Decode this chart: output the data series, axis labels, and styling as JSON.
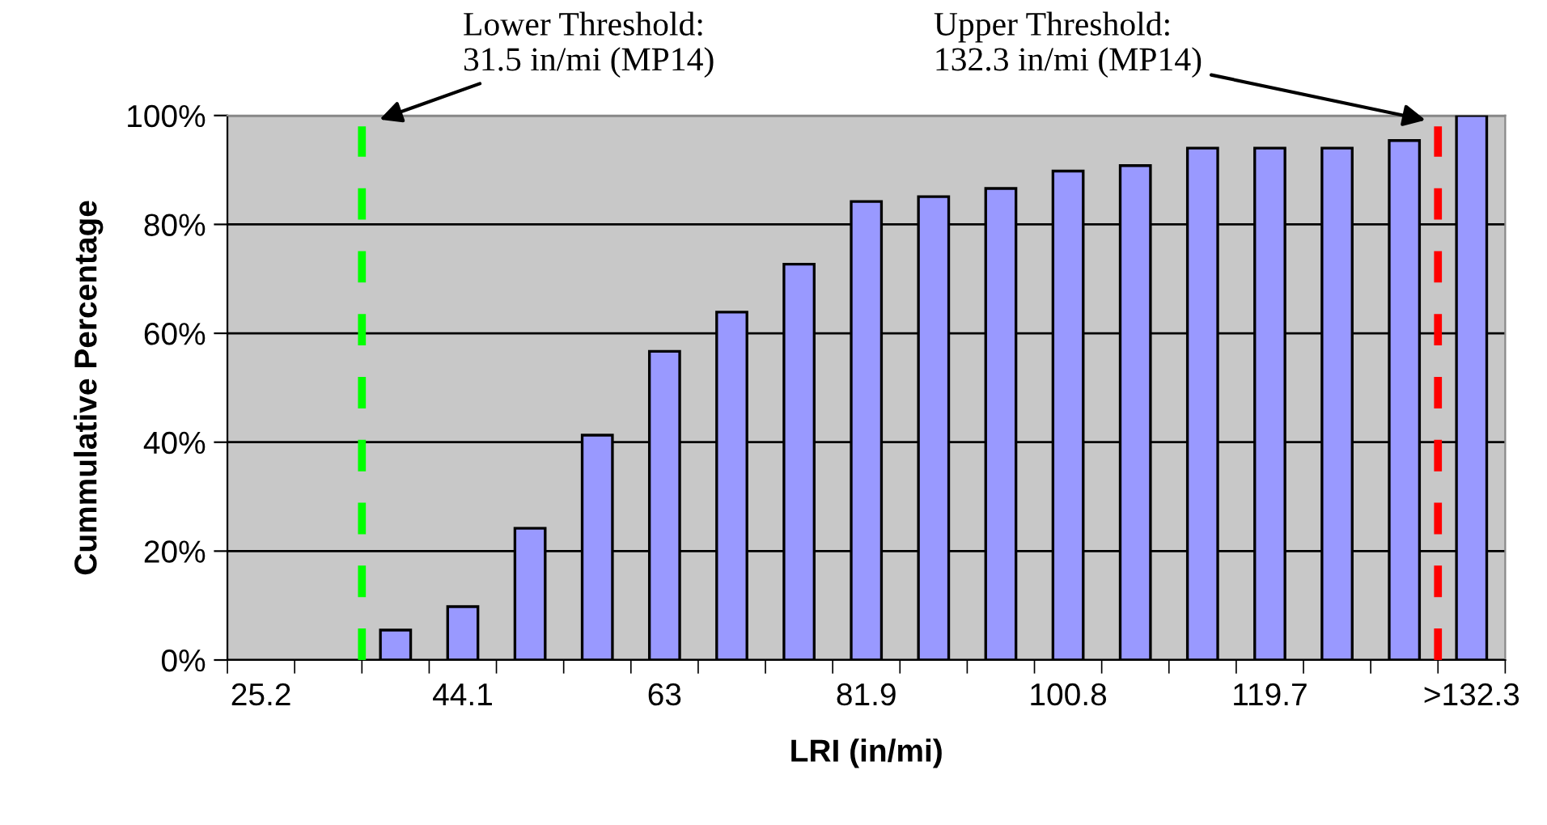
{
  "chart_data": {
    "type": "bar",
    "xlabel": "LRI (in/mi)",
    "ylabel": "Cummulative Percentage",
    "categories": [
      "25.2",
      null,
      null,
      "44.1",
      null,
      null,
      "63",
      null,
      null,
      "81.9",
      null,
      null,
      "100.8",
      null,
      null,
      "119.7",
      null,
      null,
      ">132.3"
    ],
    "values": [
      null,
      null,
      5.5,
      9.8,
      24.2,
      41.3,
      56.7,
      63.9,
      72.7,
      84.2,
      85.1,
      86.6,
      89.8,
      90.8,
      94.0,
      94.0,
      94.0,
      95.4,
      100
    ],
    "color": "#9999ff",
    "ylim": [
      0,
      100
    ],
    "yticks": [
      {
        "value": 0,
        "label": "0%"
      },
      {
        "value": 20,
        "label": "20%"
      },
      {
        "value": 40,
        "label": "40%"
      },
      {
        "value": 60,
        "label": "60%"
      },
      {
        "value": 80,
        "label": "80%"
      },
      {
        "value": 100,
        "label": "100%"
      }
    ],
    "grid": "y",
    "annotations": [
      "Lower Threshold:\n31.5 in/mi (MP14)",
      "Upper Threshold:\n132.3 in/mi (MP14)"
    ]
  }
}
